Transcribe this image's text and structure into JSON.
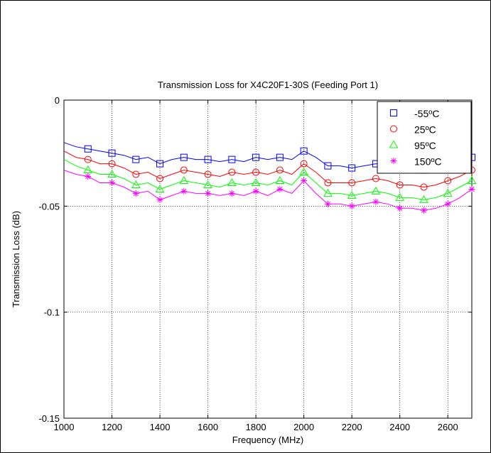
{
  "chart_data": {
    "type": "line",
    "title": "Transmission Loss for X4C20F1-30S (Feeding Port 1)",
    "xlabel": "Frequency (MHz)",
    "ylabel": "Transmission Loss (dB)",
    "xlim": [
      1000,
      2700
    ],
    "ylim": [
      -0.15,
      0
    ],
    "xticks": [
      1000,
      1200,
      1400,
      1600,
      1800,
      2000,
      2200,
      2400,
      2600
    ],
    "xtick_labels": [
      "1000",
      "1200",
      "1400",
      "1600",
      "1800",
      "2000",
      "2200",
      "2400",
      "2600"
    ],
    "yticks": [
      -0.15,
      -0.1,
      -0.05,
      0
    ],
    "ytick_labels": [
      "-0.15",
      "-0.1",
      "-0.05",
      "0"
    ],
    "grid": true,
    "legend_position": "top-right",
    "x": [
      1000,
      1050,
      1100,
      1150,
      1200,
      1250,
      1300,
      1350,
      1400,
      1450,
      1500,
      1550,
      1600,
      1650,
      1700,
      1750,
      1800,
      1850,
      1900,
      1950,
      2000,
      2050,
      2100,
      2150,
      2200,
      2250,
      2300,
      2350,
      2400,
      2450,
      2500,
      2550,
      2600,
      2650,
      2700
    ],
    "series": [
      {
        "name": "-55ºC",
        "color": "#0000ff",
        "marker": "square",
        "marker_x": [
          1100,
          1200,
          1300,
          1400,
          1500,
          1600,
          1700,
          1800,
          1900,
          2000,
          2100,
          2200,
          2300,
          2400,
          2500,
          2600,
          2700
        ],
        "values": [
          -0.02,
          -0.022,
          -0.023,
          -0.024,
          -0.025,
          -0.026,
          -0.028,
          -0.027,
          -0.03,
          -0.028,
          -0.027,
          -0.028,
          -0.028,
          -0.029,
          -0.028,
          -0.029,
          -0.027,
          -0.028,
          -0.027,
          -0.028,
          -0.024,
          -0.027,
          -0.031,
          -0.031,
          -0.032,
          -0.031,
          -0.03,
          -0.031,
          -0.032,
          -0.033,
          -0.033,
          -0.032,
          -0.031,
          -0.029,
          -0.027
        ]
      },
      {
        "name": "25ºC",
        "color": "#ff0000",
        "marker": "circle",
        "marker_x": [
          1100,
          1200,
          1300,
          1400,
          1500,
          1600,
          1700,
          1800,
          1900,
          2000,
          2100,
          2200,
          2300,
          2400,
          2500,
          2600,
          2700
        ],
        "values": [
          -0.024,
          -0.027,
          -0.028,
          -0.03,
          -0.03,
          -0.032,
          -0.035,
          -0.034,
          -0.037,
          -0.035,
          -0.033,
          -0.034,
          -0.035,
          -0.036,
          -0.034,
          -0.035,
          -0.034,
          -0.035,
          -0.033,
          -0.035,
          -0.03,
          -0.034,
          -0.039,
          -0.039,
          -0.039,
          -0.038,
          -0.037,
          -0.038,
          -0.04,
          -0.04,
          -0.041,
          -0.04,
          -0.038,
          -0.036,
          -0.033
        ]
      },
      {
        "name": "95ºC",
        "color": "#00ff00",
        "marker": "triangle",
        "marker_x": [
          1100,
          1200,
          1300,
          1400,
          1500,
          1600,
          1700,
          1800,
          1900,
          2000,
          2100,
          2200,
          2300,
          2400,
          2500,
          2600,
          2700
        ],
        "values": [
          -0.028,
          -0.031,
          -0.033,
          -0.035,
          -0.035,
          -0.037,
          -0.04,
          -0.039,
          -0.042,
          -0.04,
          -0.038,
          -0.039,
          -0.04,
          -0.041,
          -0.039,
          -0.04,
          -0.039,
          -0.04,
          -0.038,
          -0.04,
          -0.034,
          -0.039,
          -0.044,
          -0.044,
          -0.045,
          -0.044,
          -0.043,
          -0.044,
          -0.046,
          -0.046,
          -0.047,
          -0.046,
          -0.044,
          -0.041,
          -0.038
        ]
      },
      {
        "name": "150ºC",
        "color": "#ff00ff",
        "marker": "asterisk",
        "marker_x": [
          1100,
          1200,
          1300,
          1400,
          1500,
          1600,
          1700,
          1800,
          1900,
          2000,
          2100,
          2200,
          2300,
          2400,
          2500,
          2600,
          2700
        ],
        "values": [
          -0.033,
          -0.035,
          -0.036,
          -0.039,
          -0.039,
          -0.041,
          -0.044,
          -0.043,
          -0.047,
          -0.045,
          -0.043,
          -0.044,
          -0.044,
          -0.045,
          -0.044,
          -0.045,
          -0.043,
          -0.045,
          -0.042,
          -0.044,
          -0.038,
          -0.044,
          -0.049,
          -0.049,
          -0.05,
          -0.049,
          -0.048,
          -0.049,
          -0.051,
          -0.051,
          -0.052,
          -0.051,
          -0.049,
          -0.046,
          -0.042
        ]
      }
    ]
  }
}
